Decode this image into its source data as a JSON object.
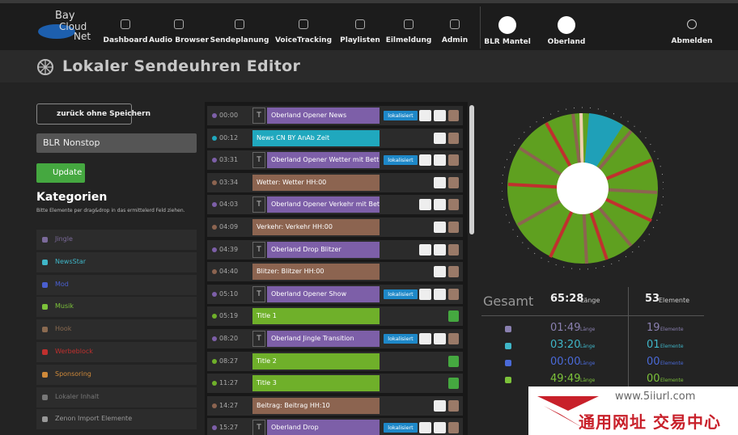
{
  "nav": {
    "logo": [
      "Bay",
      "Cloud",
      "Net"
    ],
    "items": [
      "Dashboard",
      "Audio Browser",
      "Sendeplanung",
      "VoiceTracking",
      "Playlisten",
      "Eilmeldung",
      "Admin"
    ],
    "stations": [
      "BLR Mantel",
      "Oberland"
    ],
    "logout": "Abmelden"
  },
  "page_title": "Lokaler Sendeuhren Editor",
  "sidebar": {
    "back": "zurück ohne Speichern",
    "name": "BLR Nonstop",
    "update": "Update",
    "heading": "Kategorien",
    "hint": "Bitte Elemente per drag&drop in das ermittelerd Feld ziehen.",
    "categories": [
      {
        "label": "Jingle",
        "color": "#7b6a9a"
      },
      {
        "label": "NewsStar",
        "color": "#3fb6c8"
      },
      {
        "label": "Mod",
        "color": "#4a5fd0"
      },
      {
        "label": "Musik",
        "color": "#7cc23a"
      },
      {
        "label": "Hook",
        "color": "#8a6a50"
      },
      {
        "label": "Werbeblock",
        "color": "#c0302e"
      },
      {
        "label": "Sponsoring",
        "color": "#d08a3a"
      },
      {
        "label": "Lokaler Inhalt",
        "color": "#777777"
      },
      {
        "label": "Zenon Import Elemente",
        "color": "#999999"
      }
    ]
  },
  "clock": {
    "rows": [
      {
        "time": "00:00",
        "marker": "T",
        "label": "Oberland Opener News",
        "color": "#7d5fa8",
        "badge": "lokalisiert",
        "eye": true
      },
      {
        "time": "00:12",
        "label": "News CN BY AnAb Zeit",
        "color": "#20a8be"
      },
      {
        "time": "03:31",
        "marker": "T",
        "label": "Oberland Opener Wetter mit Bett",
        "color": "#7d5fa8",
        "badge": "lokalisiert",
        "eye": true
      },
      {
        "time": "03:34",
        "label": "Wetter: Wetter HH:00",
        "color": "#8c6450"
      },
      {
        "time": "04:03",
        "marker": "T",
        "label": "Oberland Opener Verkehr mit Bett",
        "color": "#7d5fa8",
        "eye": true
      },
      {
        "time": "04:09",
        "label": "Verkehr: Verkehr HH:00",
        "color": "#8c6450"
      },
      {
        "time": "04:39",
        "marker": "T",
        "label": "Oberland Drop Blitzer",
        "color": "#7d5fa8",
        "eye": true
      },
      {
        "time": "04:40",
        "label": "Blitzer: Blitzer HH:00",
        "color": "#8c6450"
      },
      {
        "time": "05:10",
        "marker": "T",
        "label": "Oberland Opener Show",
        "color": "#7d5fa8",
        "badge": "lokalisiert",
        "eye": true
      },
      {
        "time": "05:19",
        "label": "Title 1",
        "color": "#6fb02a",
        "trash_only": true
      },
      {
        "time": "08:20",
        "marker": "T",
        "label": "Oberland Jingle Transition",
        "color": "#7d5fa8",
        "badge": "lokalisiert",
        "eye": true
      },
      {
        "time": "08:27",
        "label": "Title 2",
        "color": "#6fb02a",
        "trash_only": true
      },
      {
        "time": "11:27",
        "label": "Title 3",
        "color": "#6fb02a",
        "trash_only": true
      },
      {
        "time": "14:27",
        "label": "Beitrag: Beitrag HH:10",
        "color": "#8c6450"
      },
      {
        "time": "15:27",
        "marker": "T",
        "label": "Oberland Drop",
        "color": "#7d5fa8",
        "badge": "lokalisiert",
        "eye": true
      }
    ]
  },
  "stats": {
    "title": "Gesamt",
    "length": "65:28",
    "length_unit": "Länge",
    "count": "53",
    "count_unit": "Elemente",
    "rows": [
      {
        "length": "01:49",
        "count": "19",
        "color": "#8a80b0"
      },
      {
        "length": "03:20",
        "count": "01",
        "color": "#3fb6c8"
      },
      {
        "length": "00:00",
        "count": "00",
        "color": "#4a6ad8"
      },
      {
        "length": "49:49",
        "count": "00",
        "color": "#7cc23a"
      }
    ],
    "row_length_unit": "Länge",
    "row_count_unit": "Elemente"
  },
  "watermark": {
    "url": "www.5iiurl.com",
    "text": "通用网址 交易中心"
  }
}
